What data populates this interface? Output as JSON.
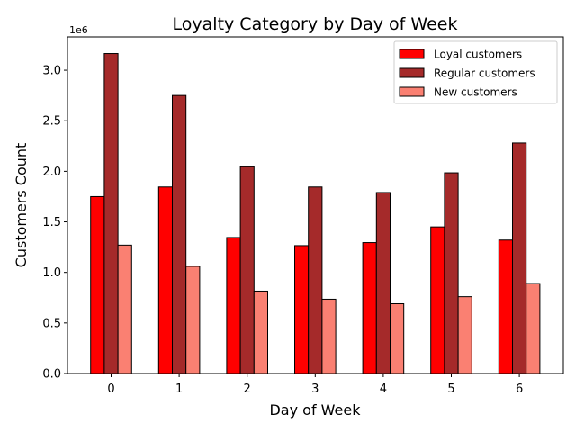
{
  "chart_data": {
    "type": "bar",
    "title": "Loyalty Category by Day of Week",
    "xlabel": "Day of Week",
    "ylabel": "Customers Count",
    "y_offset_label": "1e6",
    "y_multiplier": 1000000,
    "categories": [
      "0",
      "1",
      "2",
      "3",
      "4",
      "5",
      "6"
    ],
    "ylim": [
      0,
      3330000
    ],
    "yticks": [
      0,
      500000,
      1000000,
      1500000,
      2000000,
      2500000,
      3000000
    ],
    "ytick_labels": [
      "0.0",
      "0.5",
      "1.0",
      "1.5",
      "2.0",
      "2.5",
      "3.0"
    ],
    "grid": false,
    "legend_position": "top-right",
    "series": [
      {
        "name": "Loyal customers",
        "color": "#ff0000",
        "values": [
          1750000,
          1845000,
          1345000,
          1265000,
          1295000,
          1450000,
          1320000
        ]
      },
      {
        "name": "Regular customers",
        "color": "#a52a2a",
        "values": [
          3165000,
          2750000,
          2045000,
          1845000,
          1790000,
          1985000,
          2280000
        ]
      },
      {
        "name": "New customers",
        "color": "#fa8072",
        "values": [
          1270000,
          1060000,
          815000,
          735000,
          690000,
          760000,
          890000
        ]
      }
    ]
  }
}
